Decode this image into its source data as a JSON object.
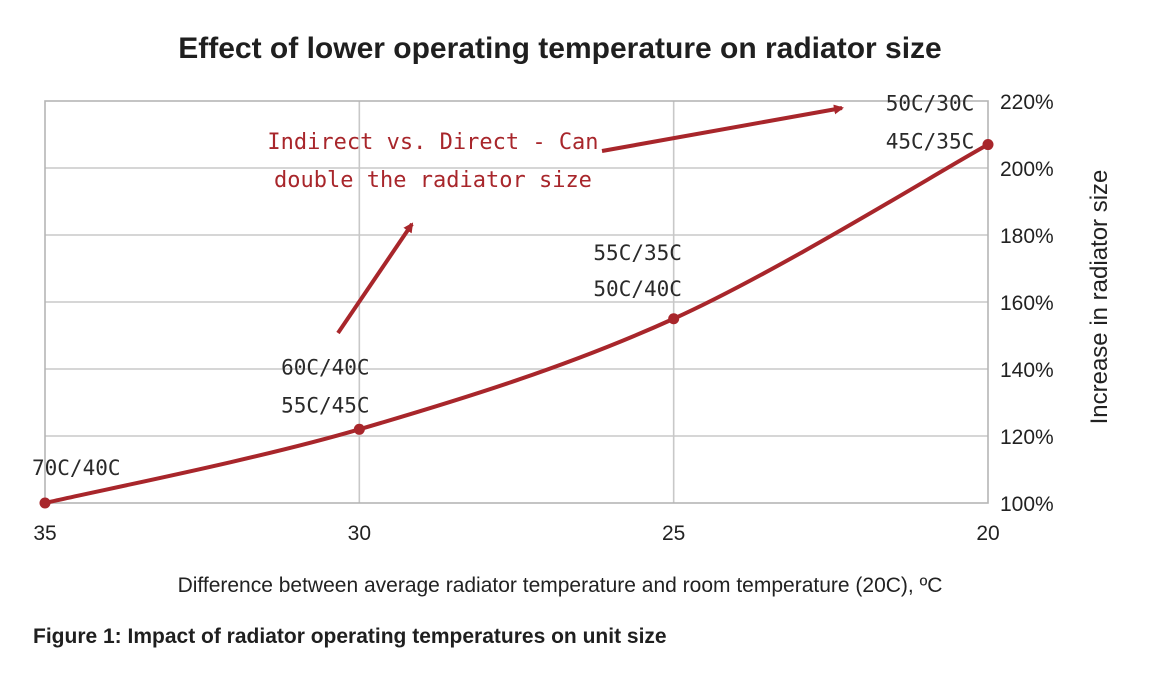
{
  "chart_data": {
    "type": "line",
    "title": "Effect of lower operating temperature on radiator size",
    "xlabel": "Difference between average radiator temperature and room temperature (20C), ºC",
    "ylabel": "Increase in radiator size",
    "x_ticks": [
      "35",
      "30",
      "25",
      "20"
    ],
    "y_ticks": [
      "100%",
      "120%",
      "140%",
      "160%",
      "180%",
      "200%",
      "220%"
    ],
    "xlim": [
      35,
      20
    ],
    "ylim": [
      100,
      220
    ],
    "y_axis_side": "right",
    "grid": true,
    "series": [
      {
        "color": "#a8262b",
        "x": [
          35,
          30,
          25,
          20
        ],
        "y": [
          100,
          122,
          155,
          207
        ]
      }
    ],
    "point_labels": [
      {
        "x": 35,
        "lines": [
          "70C/40C"
        ]
      },
      {
        "x": 30,
        "lines": [
          "60C/40C",
          "55C/45C"
        ]
      },
      {
        "x": 25,
        "lines": [
          "55C/35C",
          "50C/40C"
        ]
      },
      {
        "x": 20,
        "lines": [
          "50C/30C",
          "45C/35C"
        ]
      }
    ],
    "annotation": {
      "lines": [
        "Indirect vs. Direct - Can",
        "double the radiator size"
      ],
      "color": "#a8262b"
    }
  },
  "caption": "Figure 1: Impact of radiator operating temperatures on unit size"
}
